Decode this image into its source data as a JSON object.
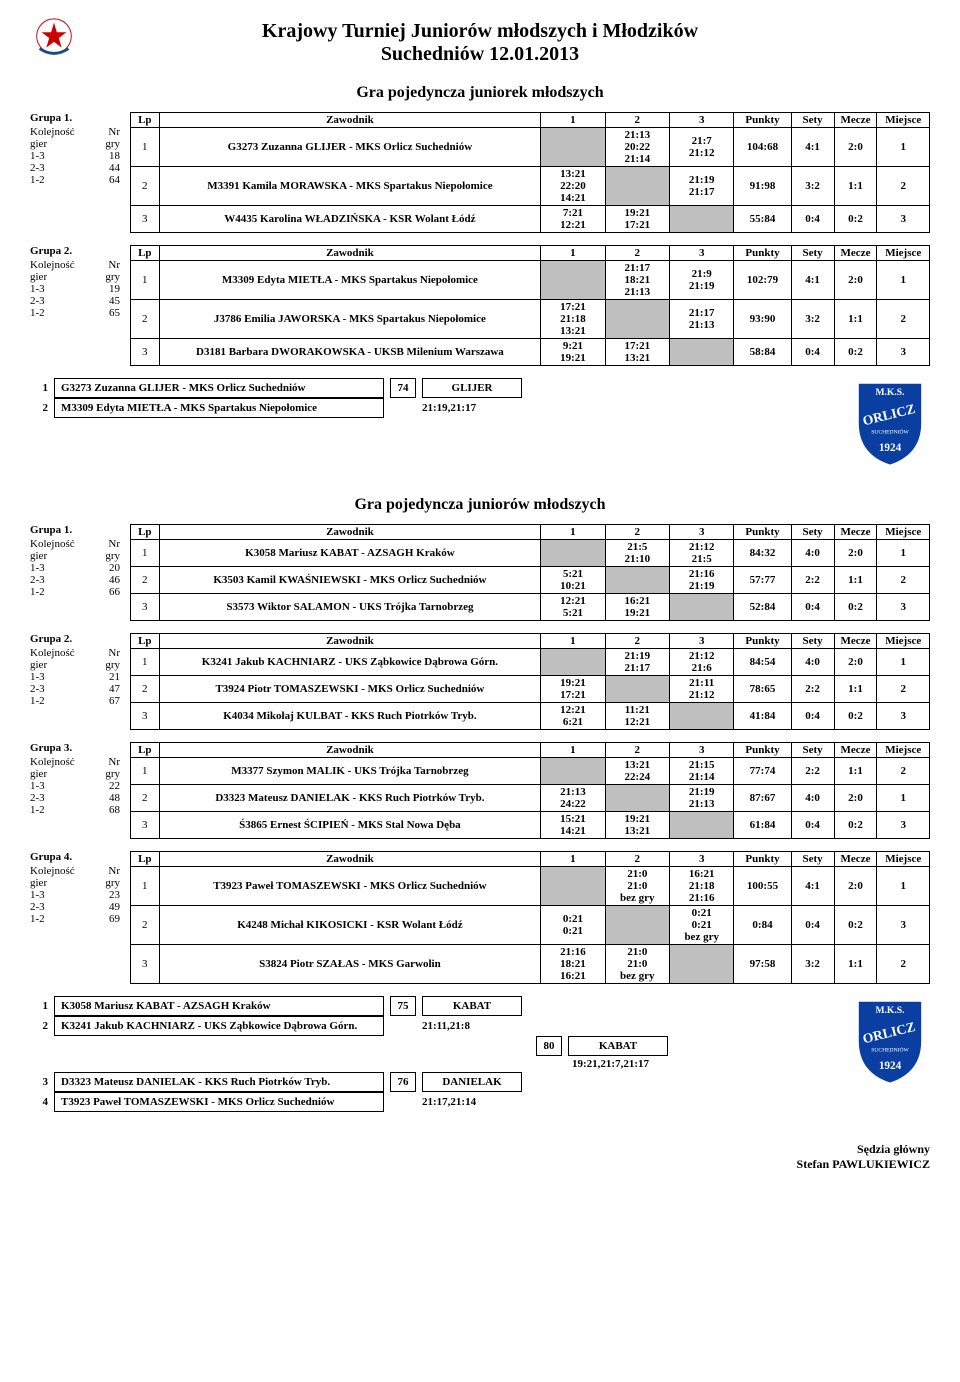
{
  "title_line1": "Krajowy Turniej Juniorów młodszych i Młodzików",
  "title_line2": "Suchedniów  12.01.2013",
  "section_girls": "Gra pojedyncza juniorek młodszych",
  "section_boys": "Gra pojedyncza juniorów młodszych",
  "col_headers": {
    "lp": "Lp",
    "zaw": "Zawodnik",
    "punkty": "Punkty",
    "sety": "Sety",
    "mecze": "Mecze",
    "miejsce": "Miejsce"
  },
  "kol_label_1": "Kolejność",
  "kol_label_2": "gier",
  "nr_label": "Nr",
  "gry_label": "gry",
  "logo_text": {
    "mks": "M.K.S.",
    "orlicz": "ORLICZ",
    "such": "SUCHEDNIÓW",
    "year": "1924"
  },
  "girls_groups": [
    {
      "caption": "Grupa 1.",
      "pairs": [
        [
          "1-3",
          "18"
        ],
        [
          "2-3",
          "44"
        ],
        [
          "1-2",
          "64"
        ]
      ],
      "rows": [
        {
          "lp": "1",
          "name": "G3273 Zuzanna GLIJER - MKS Orlicz Suchedniów",
          "c1": "",
          "c2": "21:13\n20:22\n21:14",
          "c3": "21:7\n21:12",
          "punkty": "104:68",
          "sety": "4:1",
          "mecze": "2:0",
          "miejsce": "1",
          "diag": 1
        },
        {
          "lp": "2",
          "name": "M3391 Kamila MORAWSKA - MKS Spartakus Niepołomice",
          "c1": "13:21\n22:20\n14:21",
          "c2": "",
          "c3": "21:19\n21:17",
          "punkty": "91:98",
          "sety": "3:2",
          "mecze": "1:1",
          "miejsce": "2",
          "diag": 2
        },
        {
          "lp": "3",
          "name": "W4435 Karolina WŁADZIŃSKA - KSR Wolant Łódź",
          "c1": "7:21\n12:21",
          "c2": "19:21\n17:21",
          "c3": "",
          "punkty": "55:84",
          "sety": "0:4",
          "mecze": "0:2",
          "miejsce": "3",
          "diag": 3
        }
      ]
    },
    {
      "caption": "Grupa 2.",
      "pairs": [
        [
          "1-3",
          "19"
        ],
        [
          "2-3",
          "45"
        ],
        [
          "1-2",
          "65"
        ]
      ],
      "rows": [
        {
          "lp": "1",
          "name": "M3309 Edyta MIETŁA - MKS Spartakus Niepołomice",
          "c1": "",
          "c2": "21:17\n18:21\n21:13",
          "c3": "21:9\n21:19",
          "punkty": "102:79",
          "sety": "4:1",
          "mecze": "2:0",
          "miejsce": "1",
          "diag": 1
        },
        {
          "lp": "2",
          "name": "J3786 Emilia JAWORSKA - MKS Spartakus Niepołomice",
          "c1": "17:21\n21:18\n13:21",
          "c2": "",
          "c3": "21:17\n21:13",
          "punkty": "93:90",
          "sety": "3:2",
          "mecze": "1:1",
          "miejsce": "2",
          "diag": 2
        },
        {
          "lp": "3",
          "name": "D3181 Barbara DWORAKOWSKA - UKSB Milenium Warszawa",
          "c1": "9:21\n19:21",
          "c2": "17:21\n13:21",
          "c3": "",
          "punkty": "58:84",
          "sety": "0:4",
          "mecze": "0:2",
          "miejsce": "3",
          "diag": 3
        }
      ]
    }
  ],
  "girls_advance": [
    {
      "num": "1",
      "player": "G3273  Zuzanna GLIJER - MKS Orlicz Suchedniów",
      "matchno": "74",
      "winner": "GLIJER"
    },
    {
      "num": "2",
      "player": "M3309  Edyta MIETŁA - MKS Spartakus Niepołomice",
      "score": "21:19,21:17"
    }
  ],
  "boys_groups": [
    {
      "caption": "Grupa 1.",
      "pairs": [
        [
          "1-3",
          "20"
        ],
        [
          "2-3",
          "46"
        ],
        [
          "1-2",
          "66"
        ]
      ],
      "rows": [
        {
          "lp": "1",
          "name": "K3058 Mariusz KABAT - AZSAGH Kraków",
          "c1": "",
          "c2": "21:5\n21:10",
          "c3": "21:12\n21:5",
          "punkty": "84:32",
          "sety": "4:0",
          "mecze": "2:0",
          "miejsce": "1",
          "diag": 1
        },
        {
          "lp": "2",
          "name": "K3503 Kamil KWAŚNIEWSKI - MKS Orlicz Suchedniów",
          "c1": "5:21\n10:21",
          "c2": "",
          "c3": "21:16\n21:19",
          "punkty": "57:77",
          "sety": "2:2",
          "mecze": "1:1",
          "miejsce": "2",
          "diag": 2
        },
        {
          "lp": "3",
          "name": "S3573 Wiktor SALAMON - UKS Trójka Tarnobrzeg",
          "c1": "12:21\n5:21",
          "c2": "16:21\n19:21",
          "c3": "",
          "punkty": "52:84",
          "sety": "0:4",
          "mecze": "0:2",
          "miejsce": "3",
          "diag": 3
        }
      ]
    },
    {
      "caption": "Grupa 2.",
      "pairs": [
        [
          "1-3",
          "21"
        ],
        [
          "2-3",
          "47"
        ],
        [
          "1-2",
          "67"
        ]
      ],
      "rows": [
        {
          "lp": "1",
          "name": "K3241 Jakub KACHNIARZ - UKS Ząbkowice Dąbrowa Górn.",
          "c1": "",
          "c2": "21:19\n21:17",
          "c3": "21:12\n21:6",
          "punkty": "84:54",
          "sety": "4:0",
          "mecze": "2:0",
          "miejsce": "1",
          "diag": 1
        },
        {
          "lp": "2",
          "name": "T3924 Piotr TOMASZEWSKI - MKS Orlicz Suchedniów",
          "c1": "19:21\n17:21",
          "c2": "",
          "c3": "21:11\n21:12",
          "punkty": "78:65",
          "sety": "2:2",
          "mecze": "1:1",
          "miejsce": "2",
          "diag": 2
        },
        {
          "lp": "3",
          "name": "K4034 Mikołaj KULBAT - KKS Ruch Piotrków Tryb.",
          "c1": "12:21\n6:21",
          "c2": "11:21\n12:21",
          "c3": "",
          "punkty": "41:84",
          "sety": "0:4",
          "mecze": "0:2",
          "miejsce": "3",
          "diag": 3
        }
      ]
    },
    {
      "caption": "Grupa 3.",
      "pairs": [
        [
          "1-3",
          "22"
        ],
        [
          "2-3",
          "48"
        ],
        [
          "1-2",
          "68"
        ]
      ],
      "rows": [
        {
          "lp": "1",
          "name": "M3377 Szymon MALIK - UKS Trójka Tarnobrzeg",
          "c1": "",
          "c2": "13:21\n22:24",
          "c3": "21:15\n21:14",
          "punkty": "77:74",
          "sety": "2:2",
          "mecze": "1:1",
          "miejsce": "2",
          "diag": 1
        },
        {
          "lp": "2",
          "name": "D3323 Mateusz DANIELAK - KKS Ruch Piotrków Tryb.",
          "c1": "21:13\n24:22",
          "c2": "",
          "c3": "21:19\n21:13",
          "punkty": "87:67",
          "sety": "4:0",
          "mecze": "2:0",
          "miejsce": "1",
          "diag": 2
        },
        {
          "lp": "3",
          "name": "Ś3865 Ernest ŚCIPIEŃ - MKS Stal Nowa Dęba",
          "c1": "15:21\n14:21",
          "c2": "19:21\n13:21",
          "c3": "",
          "punkty": "61:84",
          "sety": "0:4",
          "mecze": "0:2",
          "miejsce": "3",
          "diag": 3
        }
      ]
    },
    {
      "caption": "Grupa 4.",
      "pairs": [
        [
          "1-3",
          "23"
        ],
        [
          "2-3",
          "49"
        ],
        [
          "1-2",
          "69"
        ]
      ],
      "rows": [
        {
          "lp": "1",
          "name": "T3923 Paweł TOMASZEWSKI - MKS Orlicz Suchedniów",
          "c1": "",
          "c2": "21:0\n21:0\nbez gry",
          "c3": "16:21\n21:18\n21:16",
          "punkty": "100:55",
          "sety": "4:1",
          "mecze": "2:0",
          "miejsce": "1",
          "diag": 1
        },
        {
          "lp": "2",
          "name": "K4248 Michał KIKOSICKI - KSR Wolant Łódź",
          "c1": "0:21\n0:21",
          "c2": "",
          "c3": "0:21\n0:21\nbez gry",
          "punkty": "0:84",
          "sety": "0:4",
          "mecze": "0:2",
          "miejsce": "3",
          "diag": 2
        },
        {
          "lp": "3",
          "name": "S3824 Piotr SZAŁAS - MKS Garwolin",
          "c1": "21:16\n18:21\n16:21",
          "c2": "21:0\n21:0\nbez gry",
          "c3": "",
          "punkty": "97:58",
          "sety": "3:2",
          "mecze": "1:1",
          "miejsce": "2",
          "diag": 3
        }
      ]
    }
  ],
  "boys_advance_top": [
    {
      "num": "1",
      "player": "K3058  Mariusz KABAT - AZSAGH Kraków",
      "matchno": "75",
      "winner": "KABAT"
    },
    {
      "num": "2",
      "player": "K3241  Jakub KACHNIARZ - UKS Ząbkowice Dąbrowa Górn.",
      "score": "21:11,21:8"
    }
  ],
  "boys_advance_final": {
    "matchno": "80",
    "winner": "KABAT",
    "score": "19:21,21:7,21:17"
  },
  "boys_advance_bottom": [
    {
      "num": "3",
      "player": "D3323  Mateusz DANIELAK - KKS Ruch Piotrków Tryb.",
      "matchno": "76",
      "winner": "DANIELAK"
    },
    {
      "num": "4",
      "player": "T3923  Paweł TOMASZEWSKI - MKS Orlicz Suchedniów",
      "score": "21:17,21:14"
    }
  ],
  "footer_line1": "Sędzia główny",
  "footer_line2": "Stefan PAWLUKIEWICZ"
}
